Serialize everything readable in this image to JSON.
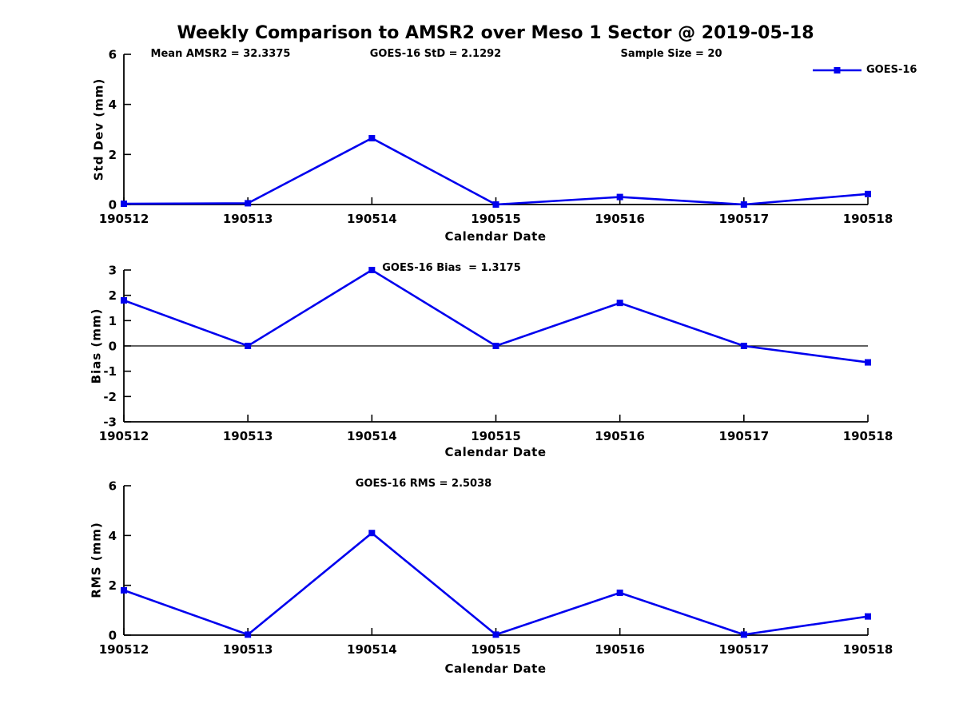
{
  "title": "Weekly Comparison to AMSR2 over Meso 1 Sector @ 2019-05-18",
  "colors": {
    "line": "#0000EE",
    "axis": "#000000",
    "text": "#000000"
  },
  "legend": {
    "label": "GOES-16"
  },
  "chart_data": [
    {
      "type": "line",
      "id": "std-dev",
      "ylabel": "Std Dev (mm)",
      "xlabel": "Calendar Date",
      "ylim": [
        0,
        6
      ],
      "yticks": [
        0,
        2,
        4,
        6
      ],
      "zero_line": false,
      "grid": false,
      "legend_position": "top-right",
      "categories": [
        "190512",
        "190513",
        "190514",
        "190515",
        "190516",
        "190517",
        "190518"
      ],
      "series": [
        {
          "name": "GOES-16",
          "values": [
            0.03,
            0.05,
            2.65,
            0.0,
            0.3,
            0.0,
            0.42
          ]
        }
      ],
      "annotations": [
        "Mean AMSR2 = 32.3375",
        "GOES-16 StD = 2.1292",
        "Sample Size = 20"
      ]
    },
    {
      "type": "line",
      "id": "bias",
      "ylabel": "Bias (mm)",
      "xlabel": "Calendar Date",
      "ylim": [
        -3,
        3
      ],
      "yticks": [
        -3,
        -2,
        -1,
        0,
        1,
        2,
        3
      ],
      "zero_line": true,
      "grid": false,
      "categories": [
        "190512",
        "190513",
        "190514",
        "190515",
        "190516",
        "190517",
        "190518"
      ],
      "series": [
        {
          "name": "GOES-16",
          "values": [
            1.8,
            0.0,
            3.0,
            0.0,
            1.7,
            0.0,
            -0.65
          ]
        }
      ],
      "annotations": [
        "GOES-16 Bias  = 1.3175"
      ]
    },
    {
      "type": "line",
      "id": "rms",
      "ylabel": "RMS (mm)",
      "xlabel": "Calendar Date",
      "ylim": [
        0,
        6
      ],
      "yticks": [
        0,
        2,
        4,
        6
      ],
      "zero_line": false,
      "grid": false,
      "categories": [
        "190512",
        "190513",
        "190514",
        "190515",
        "190516",
        "190517",
        "190518"
      ],
      "series": [
        {
          "name": "GOES-16",
          "values": [
            1.8,
            0.02,
            4.1,
            0.02,
            1.7,
            0.02,
            0.75
          ]
        }
      ],
      "annotations": [
        "GOES-16 RMS = 2.5038"
      ]
    }
  ]
}
